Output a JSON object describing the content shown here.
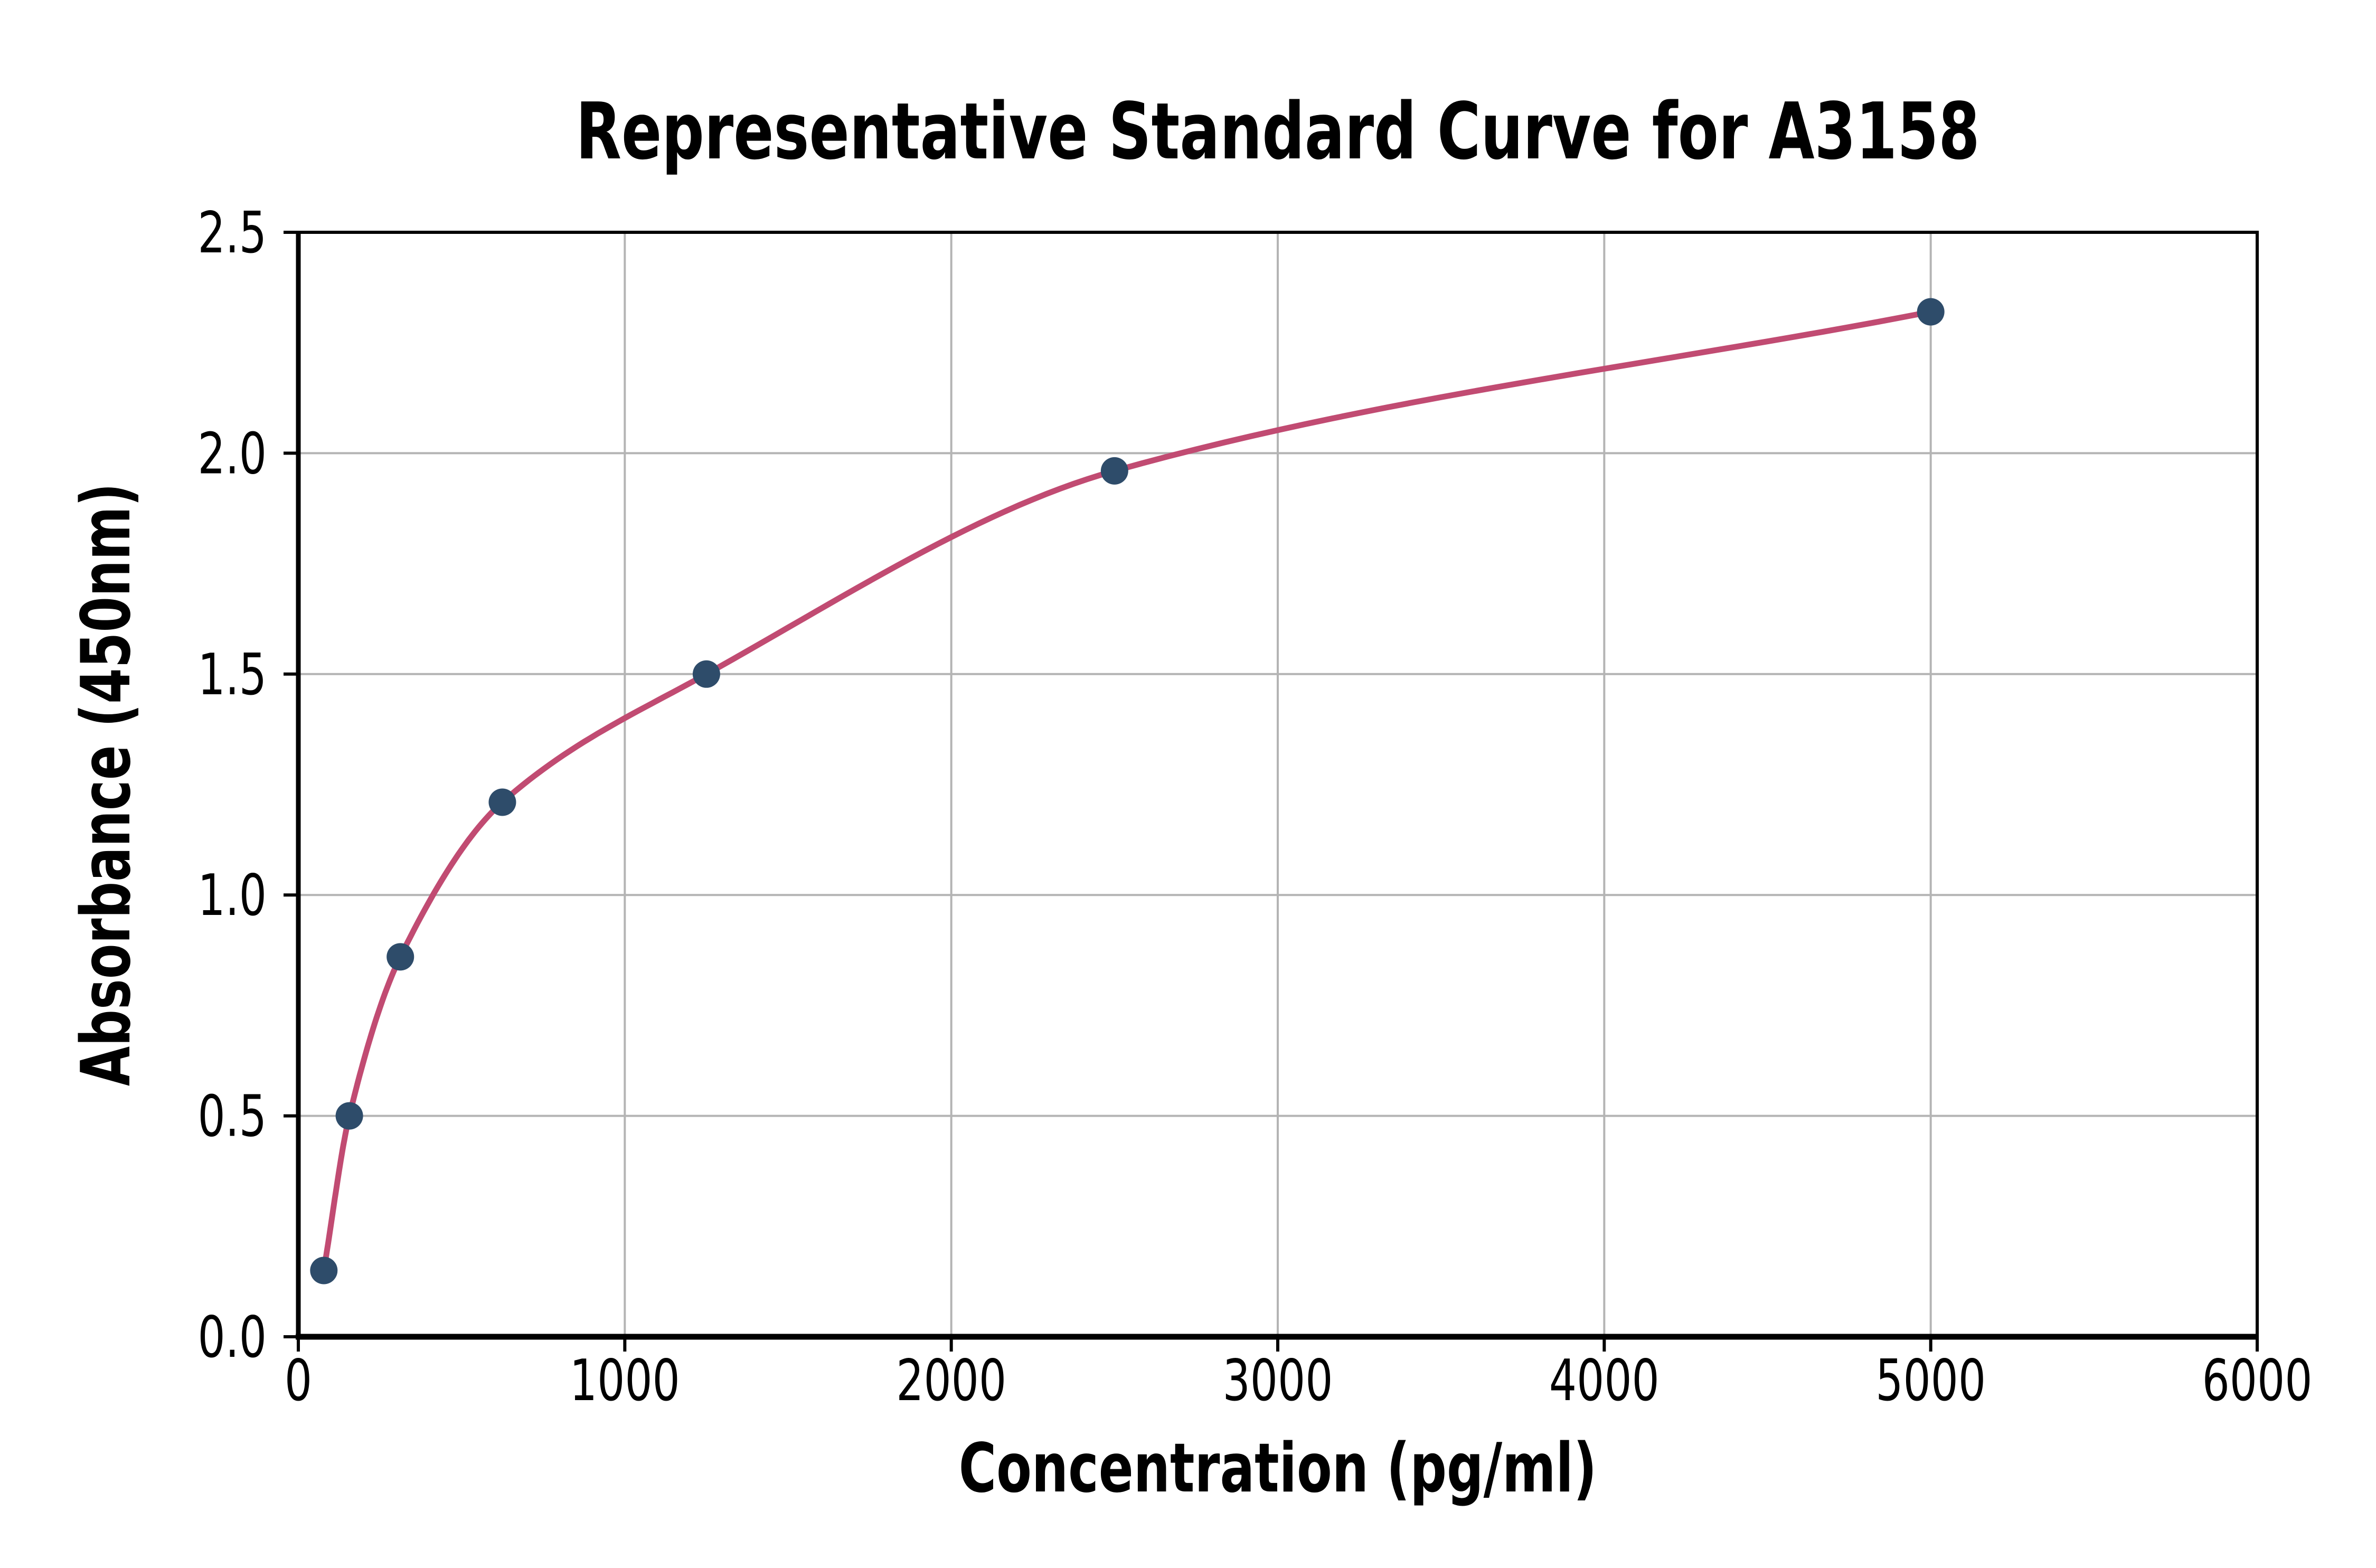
{
  "page": {
    "background": "#ffffff"
  },
  "chart_data": {
    "type": "scatter",
    "title": "Representative Standard Curve for A3158",
    "xlabel": "Concentration (pg/ml)",
    "ylabel": "Absorbance (450nm)",
    "x": [
      78.125,
      156.25,
      312.5,
      625,
      1250,
      2500,
      5000
    ],
    "y": [
      0.15,
      0.5,
      0.86,
      1.21,
      1.5,
      1.96,
      2.32
    ],
    "series_name": "standard-curve-points",
    "fit": "smooth 4PL-style curve through the points, drawn from first to last point",
    "xlim": [
      0,
      6000
    ],
    "ylim": [
      0,
      2.5
    ],
    "x_ticks": [
      0,
      1000,
      2000,
      3000,
      4000,
      5000,
      6000
    ],
    "x_tick_labels": [
      "0",
      "1000",
      "2000",
      "3000",
      "4000",
      "5000",
      "6000"
    ],
    "y_ticks": [
      0,
      0.5,
      1,
      1.5,
      2,
      2.5
    ],
    "y_tick_labels": [
      "0.0",
      "0.5",
      "1.0",
      "1.5",
      "2.0",
      "2.5"
    ],
    "grid": true,
    "legend": false,
    "colors": {
      "marker": "#2E4C6A",
      "line": "#C14B72",
      "grid": "#B4B4B4",
      "axis": "#000000",
      "text": "#000000",
      "background": "#FFFFFF"
    }
  }
}
